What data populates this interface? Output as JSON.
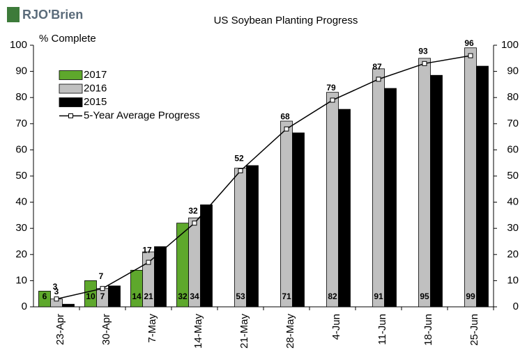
{
  "logo": "RJO'Brien",
  "chart_data": {
    "type": "bar",
    "title": "US Soybean Planting Progress",
    "y_label": "% Complete",
    "categories": [
      "23-Apr",
      "30-Apr",
      "7-May",
      "14-May",
      "21-May",
      "28-May",
      "4-Jun",
      "11-Jun",
      "18-Jun",
      "25-Jun"
    ],
    "series": [
      {
        "name": "2017",
        "color": "#5ea82c",
        "values": [
          6,
          10,
          14,
          32,
          null,
          null,
          null,
          null,
          null,
          null
        ]
      },
      {
        "name": "2016",
        "color": "#c0c0c0",
        "values": [
          3,
          7,
          21,
          34,
          53,
          71,
          82,
          91,
          95,
          99
        ]
      },
      {
        "name": "2015",
        "color": "#000000",
        "values": [
          1,
          8,
          23,
          39,
          54,
          66.5,
          75.5,
          83.5,
          88.5,
          92
        ]
      },
      {
        "name": "5-Year Average Progress",
        "type": "line",
        "color": "#000000",
        "values": [
          3,
          7,
          17,
          32,
          52,
          68,
          79,
          87,
          93,
          96
        ]
      }
    ],
    "ylim": [
      0,
      100
    ],
    "yticks": [
      0,
      10,
      20,
      30,
      40,
      50,
      60,
      70,
      80,
      90,
      100
    ],
    "y2lim": [
      0,
      100
    ],
    "y2ticks": [
      0,
      10,
      20,
      30,
      40,
      50,
      60,
      70,
      80,
      90,
      100
    ],
    "legend": "upper left",
    "grid": false
  }
}
